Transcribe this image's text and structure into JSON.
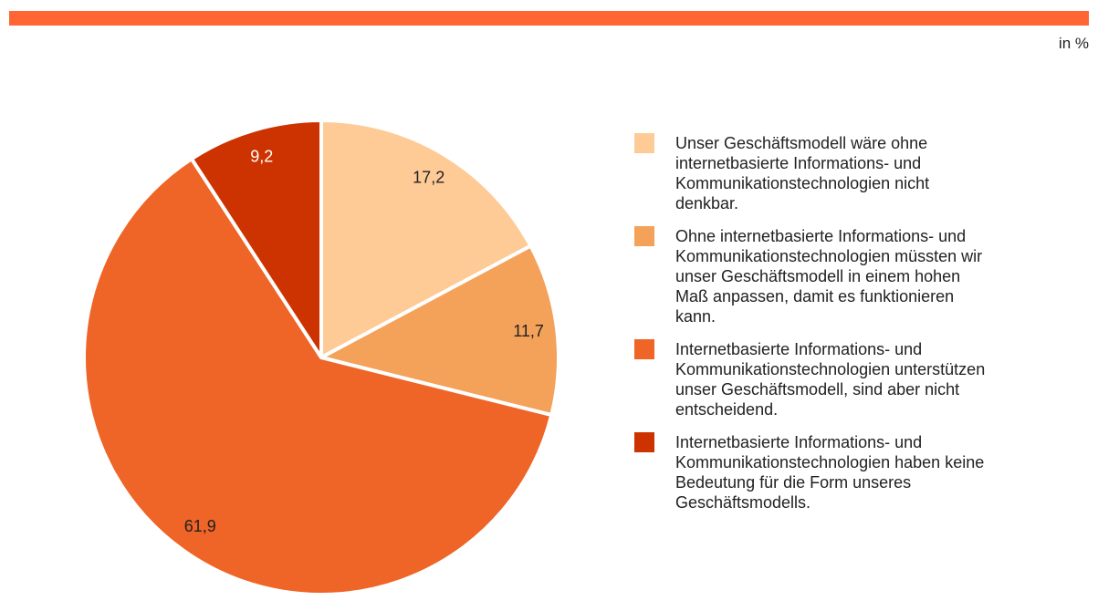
{
  "chart_data": {
    "type": "pie",
    "unit_label": "in %",
    "categories": [
      "Unser Geschäftsmodell wäre ohne internetbasierte Informations- und Kommunikationstechnologien nicht denkbar.",
      "Ohne internetbasierte Informations- und Kommunikationstechnologien müssten wir unser Geschäftsmodell in einem hohen Maß anpassen, damit es funktionieren kann.",
      "Internetbasierte Informations- und Kommunikationstechnologien unterstützen unser Geschäftsmodell, sind aber nicht entscheidend.",
      "Internetbasierte Informations- und Kommunikationstechnologien haben keine Bedeutung für die Form unseres Geschäftsmodells."
    ],
    "values": [
      17.2,
      11.7,
      61.9,
      9.2
    ],
    "value_labels": [
      "17,2",
      "11,7",
      "61,9",
      "9,2"
    ],
    "colors": [
      "#fecb96",
      "#f4a15a",
      "#ef6427",
      "#cc3300"
    ],
    "legend": "right"
  }
}
